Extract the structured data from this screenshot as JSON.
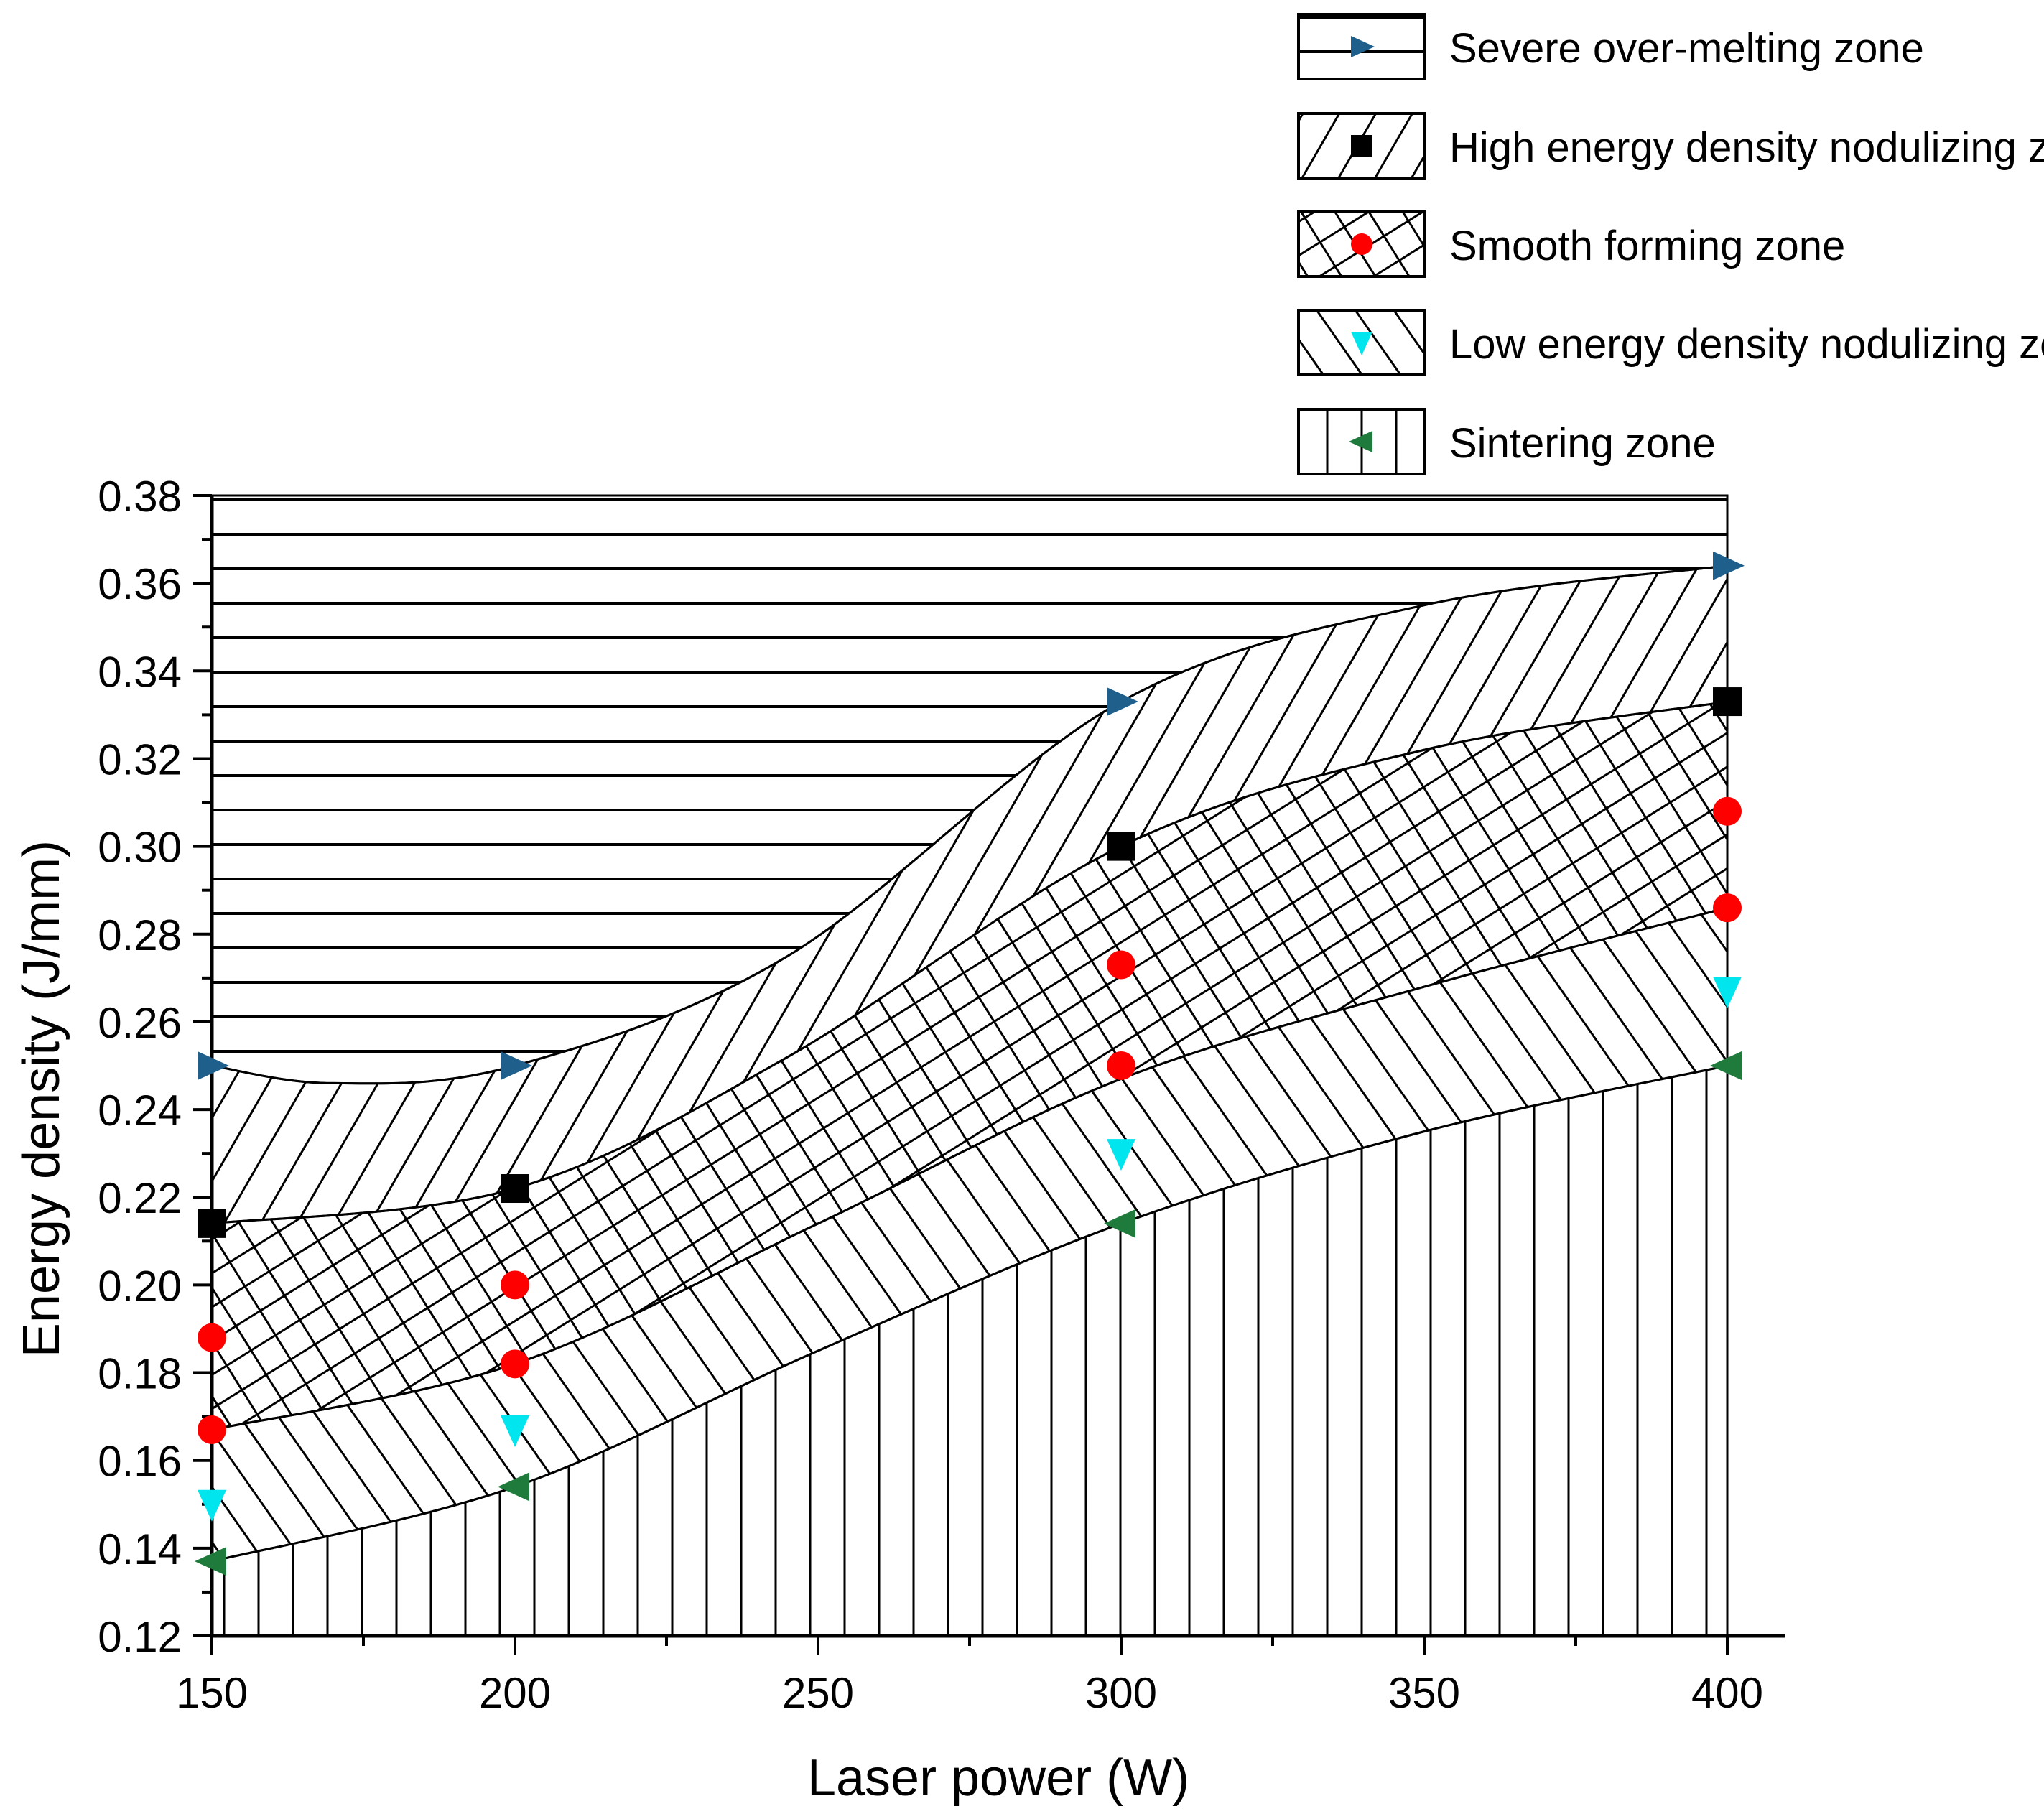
{
  "chart_data": {
    "type": "scatter",
    "title": "",
    "xlabel": "Laser power (W)",
    "ylabel": "Energy density (J/mm)",
    "xlim": [
      150,
      400
    ],
    "ylim": [
      0.12,
      0.38
    ],
    "x_ticks": [
      150,
      200,
      250,
      300,
      350,
      400
    ],
    "x_tick_labels": [
      "150",
      "200",
      "250",
      "300",
      "350",
      "400"
    ],
    "y_ticks": [
      0.12,
      0.14,
      0.16,
      0.18,
      0.2,
      0.22,
      0.24,
      0.26,
      0.28,
      0.3,
      0.32,
      0.34,
      0.36,
      0.38
    ],
    "y_tick_labels": [
      "0.12",
      "0.14",
      "0.16",
      "0.18",
      "0.20",
      "0.22",
      "0.24",
      "0.26",
      "0.28",
      "0.30",
      "0.32",
      "0.34",
      "0.36",
      "0.38"
    ],
    "legend_position": "top-right, above plot",
    "series": [
      {
        "name": "Severe over-melting zone",
        "marker": "triangle-right",
        "color": "#1f5f8b",
        "hatch": "horizontal",
        "points": [
          [
            150,
            0.25
          ],
          [
            200,
            0.25
          ],
          [
            300,
            0.333
          ],
          [
            400,
            0.364
          ]
        ]
      },
      {
        "name": "High energy density nodulizing zone",
        "marker": "square",
        "color": "#000000",
        "hatch": "forward-diagonal",
        "points": [
          [
            150,
            0.214
          ],
          [
            200,
            0.222
          ],
          [
            300,
            0.3
          ],
          [
            400,
            0.333
          ]
        ]
      },
      {
        "name": "Smooth forming zone",
        "marker": "circle",
        "color": "#ff0000",
        "hatch": "crosshatch",
        "points": [
          [
            150,
            0.188
          ],
          [
            150,
            0.167
          ],
          [
            200,
            0.2
          ],
          [
            200,
            0.182
          ],
          [
            300,
            0.273
          ],
          [
            300,
            0.25
          ],
          [
            400,
            0.308
          ],
          [
            400,
            0.286
          ]
        ]
      },
      {
        "name": "Low energy density nodulizing zone",
        "marker": "triangle-down",
        "color": "#00e5ee",
        "hatch": "back-diagonal",
        "points": [
          [
            150,
            0.15
          ],
          [
            200,
            0.167
          ],
          [
            300,
            0.23
          ],
          [
            400,
            0.267
          ]
        ]
      },
      {
        "name": "Sintering zone",
        "marker": "triangle-left",
        "color": "#1e7b3c",
        "hatch": "vertical",
        "points": [
          [
            150,
            0.137
          ],
          [
            200,
            0.154
          ],
          [
            300,
            0.214
          ],
          [
            400,
            0.25
          ]
        ]
      }
    ],
    "zones": [
      {
        "name": "Severe over-melting zone",
        "hatch": "horizontal",
        "lower": [
          [
            150,
            0.25
          ],
          [
            170,
            0.246
          ],
          [
            200,
            0.25
          ],
          [
            245,
            0.275
          ],
          [
            300,
            0.333
          ],
          [
            350,
            0.355
          ],
          [
            400,
            0.364
          ]
        ],
        "upper": [
          [
            150,
            0.38
          ],
          [
            400,
            0.38
          ]
        ]
      },
      {
        "name": "High energy density nodulizing zone",
        "hatch": "forward-diagonal",
        "lower": [
          [
            150,
            0.214
          ],
          [
            200,
            0.222
          ],
          [
            245,
            0.252
          ],
          [
            300,
            0.3
          ],
          [
            350,
            0.322
          ],
          [
            400,
            0.333
          ]
        ],
        "upper": [
          [
            150,
            0.25
          ],
          [
            170,
            0.246
          ],
          [
            200,
            0.25
          ],
          [
            245,
            0.275
          ],
          [
            300,
            0.333
          ],
          [
            350,
            0.355
          ],
          [
            400,
            0.364
          ]
        ]
      },
      {
        "name": "Smooth forming zone",
        "hatch": "crosshatch",
        "lower": [
          [
            150,
            0.167
          ],
          [
            200,
            0.182
          ],
          [
            250,
            0.214
          ],
          [
            300,
            0.247
          ],
          [
            350,
            0.268
          ],
          [
            400,
            0.286
          ]
        ],
        "upper": [
          [
            150,
            0.214
          ],
          [
            200,
            0.222
          ],
          [
            245,
            0.252
          ],
          [
            300,
            0.3
          ],
          [
            350,
            0.322
          ],
          [
            400,
            0.333
          ]
        ]
      },
      {
        "name": "Low energy density nodulizing zone",
        "hatch": "back-diagonal",
        "lower": [
          [
            150,
            0.137
          ],
          [
            200,
            0.154
          ],
          [
            250,
            0.185
          ],
          [
            300,
            0.214
          ],
          [
            350,
            0.235
          ],
          [
            400,
            0.25
          ]
        ],
        "upper": [
          [
            150,
            0.167
          ],
          [
            200,
            0.182
          ],
          [
            250,
            0.214
          ],
          [
            300,
            0.247
          ],
          [
            350,
            0.268
          ],
          [
            400,
            0.286
          ]
        ]
      },
      {
        "name": "Sintering zone",
        "hatch": "vertical",
        "lower": [
          [
            150,
            0.12
          ],
          [
            400,
            0.12
          ]
        ],
        "upper": [
          [
            150,
            0.137
          ],
          [
            200,
            0.154
          ],
          [
            250,
            0.185
          ],
          [
            300,
            0.214
          ],
          [
            350,
            0.235
          ],
          [
            400,
            0.25
          ]
        ]
      }
    ]
  }
}
